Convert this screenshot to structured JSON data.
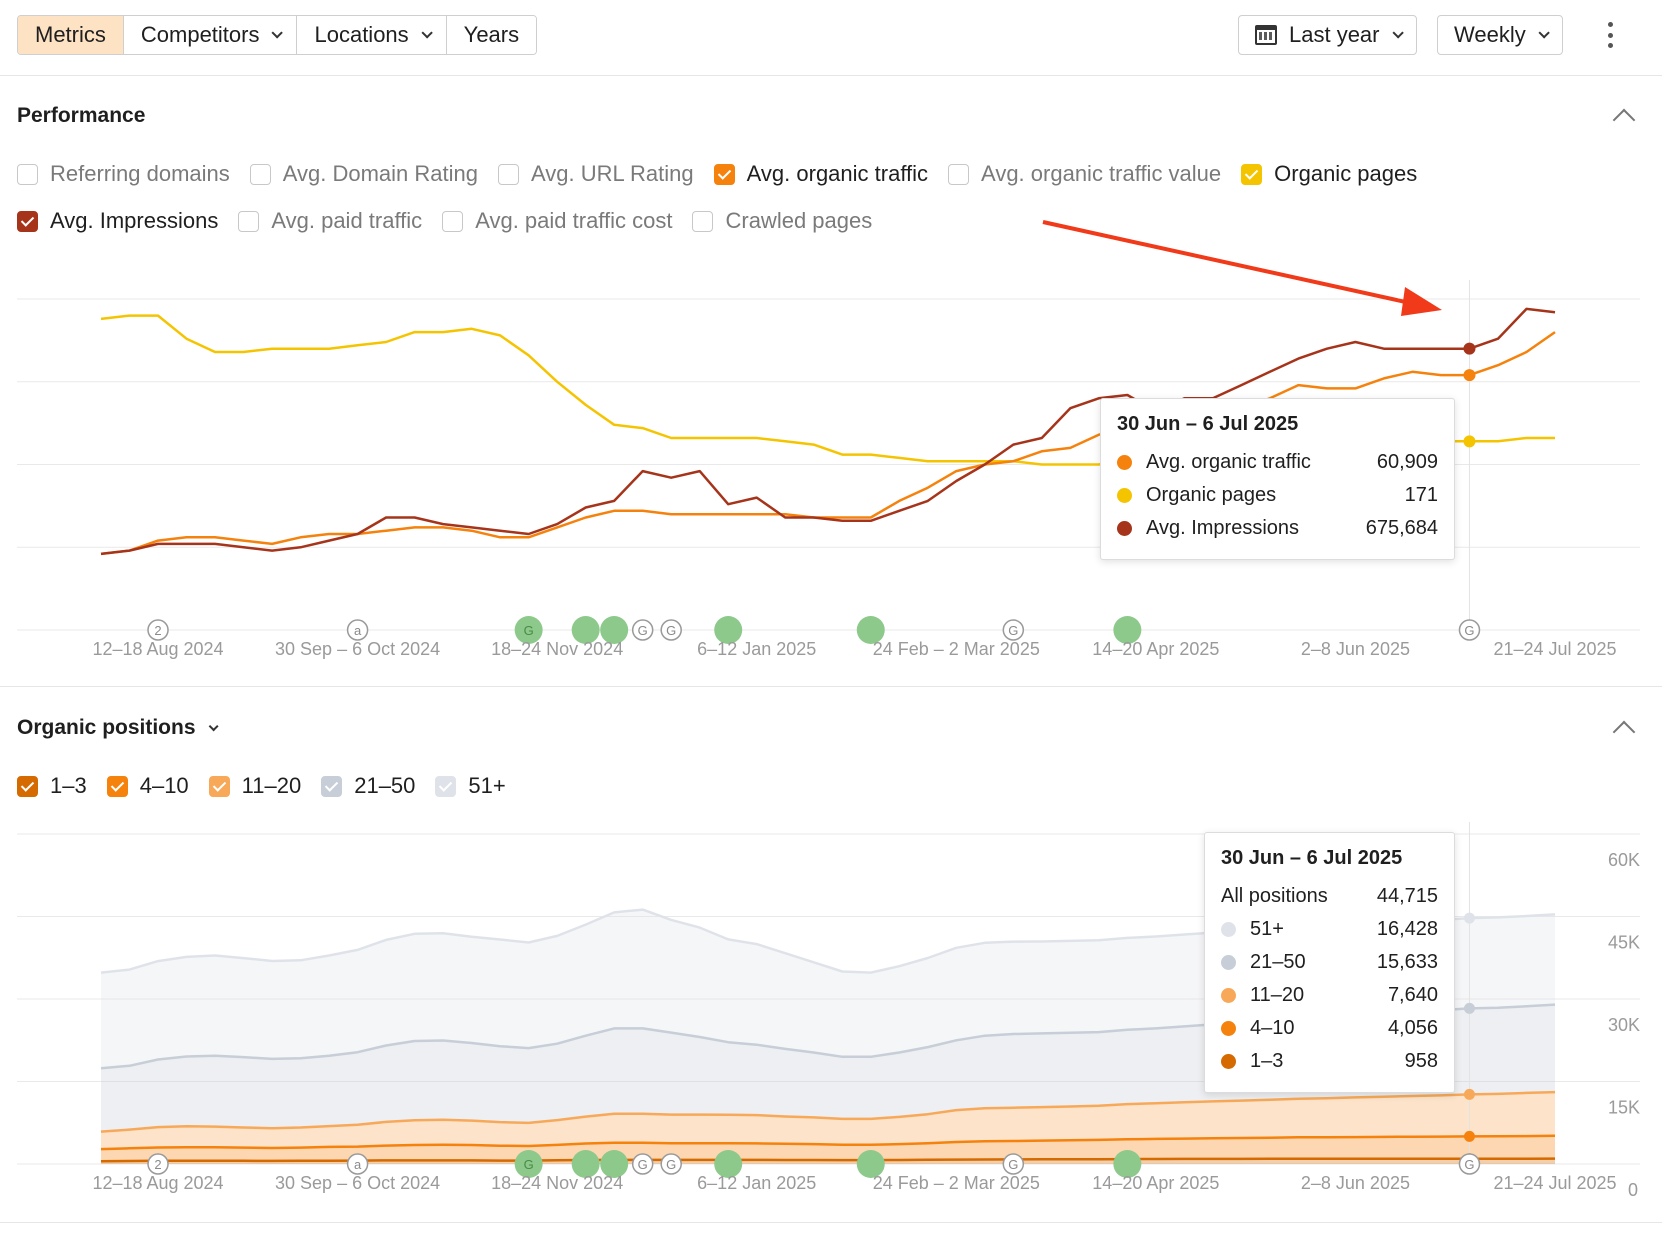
{
  "toolbar": {
    "tabs": [
      {
        "label": "Metrics",
        "active": true,
        "dropdown": false
      },
      {
        "label": "Competitors",
        "active": false,
        "dropdown": true
      },
      {
        "label": "Locations",
        "active": false,
        "dropdown": true
      },
      {
        "label": "Years",
        "active": false,
        "dropdown": false
      }
    ],
    "period_label": "Last year",
    "interval_label": "Weekly"
  },
  "colors": {
    "organic_traffic": "#f5820d",
    "organic_pages": "#f5c400",
    "impressions": "#a6341b",
    "pos_1_3": "#d56a00",
    "pos_4_10": "#f5820d",
    "pos_11_20": "#f7a959",
    "pos_21_50": "#c7ced7",
    "pos_51_plus": "#dfe3e9",
    "annotation_green": "#8cc98a",
    "arrow": "#f03a1a"
  },
  "performance": {
    "title": "Performance",
    "checkboxes_row1": [
      {
        "label": "Referring domains",
        "checked": false,
        "color": ""
      },
      {
        "label": "Avg. Domain Rating",
        "checked": false,
        "color": ""
      },
      {
        "label": "Avg. URL Rating",
        "checked": false,
        "color": ""
      },
      {
        "label": "Avg. organic traffic",
        "checked": true,
        "color": "#f5820d"
      },
      {
        "label": "Avg. organic traffic value",
        "checked": false,
        "color": ""
      },
      {
        "label": "Organic pages",
        "checked": true,
        "color": "#f5c400"
      }
    ],
    "checkboxes_row2": [
      {
        "label": "Avg. Impressions",
        "checked": true,
        "color": "#a6341b"
      },
      {
        "label": "Avg. paid traffic",
        "checked": false,
        "color": ""
      },
      {
        "label": "Avg. paid traffic cost",
        "checked": false,
        "color": ""
      },
      {
        "label": "Crawled pages",
        "checked": false,
        "color": ""
      }
    ],
    "tooltip": {
      "title": "30 Jun – 6 Jul 2025",
      "rows": [
        {
          "name": "Avg. organic traffic",
          "value": "60,909",
          "color": "#f5820d"
        },
        {
          "name": "Organic pages",
          "value": "171",
          "color": "#f5c400"
        },
        {
          "name": "Avg. Impressions",
          "value": "675,684",
          "color": "#a6341b"
        }
      ]
    }
  },
  "positions": {
    "title": "Organic positions",
    "checkboxes": [
      {
        "label": "1–3",
        "checked": true,
        "color": "#d56a00"
      },
      {
        "label": "4–10",
        "checked": true,
        "color": "#f5820d"
      },
      {
        "label": "11–20",
        "checked": true,
        "color": "#f7a959"
      },
      {
        "label": "21–50",
        "checked": true,
        "color": "#c7ced7"
      },
      {
        "label": "51+",
        "checked": true,
        "color": "#dfe3e9"
      }
    ],
    "tooltip": {
      "title": "30 Jun – 6 Jul 2025",
      "total_label": "All positions",
      "total_value": "44,715",
      "rows": [
        {
          "name": "51+",
          "value": "16,428",
          "color": "#dfe3e9"
        },
        {
          "name": "21–50",
          "value": "15,633",
          "color": "#c7ced7"
        },
        {
          "name": "11–20",
          "value": "7,640",
          "color": "#f7a959"
        },
        {
          "name": "4–10",
          "value": "4,056",
          "color": "#f5820d"
        },
        {
          "name": "1–3",
          "value": "958",
          "color": "#d56a00"
        }
      ]
    }
  },
  "chart_data": [
    {
      "type": "line",
      "x_tick_labels": [
        "12–18 Aug 2024",
        "30 Sep – 6 Oct 2024",
        "18–24 Nov 2024",
        "6–12 Jan 2025",
        "24 Feb – 2 Mar 2025",
        "14–20 Apr 2025",
        "2–8 Jun 2025",
        "21–24 Jul 2025"
      ],
      "x_tick_index": [
        2,
        9,
        16,
        23,
        30,
        37,
        44,
        51
      ],
      "x_count": 52,
      "highlight_index": 48,
      "ylim": [
        0,
        1
      ],
      "grid": true,
      "annotations": [
        {
          "index": 2,
          "label": "2",
          "kind": "outline"
        },
        {
          "index": 9,
          "label": "a",
          "kind": "outline"
        },
        {
          "index": 15,
          "label": "G",
          "kind": "green"
        },
        {
          "index": 17,
          "label": "",
          "kind": "green"
        },
        {
          "index": 18,
          "label": "",
          "kind": "green"
        },
        {
          "index": 19,
          "label": "G",
          "kind": "outline"
        },
        {
          "index": 20,
          "label": "G",
          "kind": "outline"
        },
        {
          "index": 22,
          "label": "",
          "kind": "green"
        },
        {
          "index": 27,
          "label": "",
          "kind": "green"
        },
        {
          "index": 32,
          "label": "G",
          "kind": "outline"
        },
        {
          "index": 36,
          "label": "",
          "kind": "green"
        },
        {
          "index": 48,
          "label": "G",
          "kind": "outline"
        }
      ],
      "series": [
        {
          "name": "Organic pages",
          "color": "#f5c400",
          "values": [
            0.94,
            0.95,
            0.95,
            0.88,
            0.84,
            0.84,
            0.85,
            0.85,
            0.85,
            0.86,
            0.87,
            0.9,
            0.9,
            0.91,
            0.89,
            0.83,
            0.75,
            0.68,
            0.62,
            0.61,
            0.58,
            0.58,
            0.58,
            0.58,
            0.57,
            0.56,
            0.53,
            0.53,
            0.52,
            0.51,
            0.51,
            0.51,
            0.51,
            0.5,
            0.5,
            0.5,
            0.52,
            0.53,
            0.54,
            0.55,
            0.55,
            0.55,
            0.56,
            0.56,
            0.56,
            0.57,
            0.57,
            0.57,
            0.57,
            0.57,
            0.58,
            0.58
          ]
        },
        {
          "name": "Avg. organic traffic",
          "color": "#f5820d",
          "values": [
            0.23,
            0.24,
            0.27,
            0.28,
            0.28,
            0.27,
            0.26,
            0.28,
            0.29,
            0.29,
            0.3,
            0.31,
            0.31,
            0.3,
            0.28,
            0.28,
            0.31,
            0.34,
            0.36,
            0.36,
            0.35,
            0.35,
            0.35,
            0.35,
            0.35,
            0.34,
            0.34,
            0.34,
            0.39,
            0.43,
            0.48,
            0.5,
            0.51,
            0.54,
            0.55,
            0.59,
            0.61,
            0.62,
            0.62,
            0.64,
            0.67,
            0.7,
            0.74,
            0.73,
            0.73,
            0.76,
            0.78,
            0.77,
            0.77,
            0.8,
            0.84,
            0.9
          ]
        },
        {
          "name": "Avg. Impressions",
          "color": "#a6341b",
          "values": [
            0.23,
            0.24,
            0.26,
            0.26,
            0.26,
            0.25,
            0.24,
            0.25,
            0.27,
            0.29,
            0.34,
            0.34,
            0.32,
            0.31,
            0.3,
            0.29,
            0.32,
            0.37,
            0.39,
            0.48,
            0.46,
            0.48,
            0.38,
            0.4,
            0.34,
            0.34,
            0.33,
            0.33,
            0.36,
            0.39,
            0.45,
            0.5,
            0.56,
            0.58,
            0.67,
            0.7,
            0.71,
            0.66,
            0.7,
            0.7,
            0.74,
            0.78,
            0.82,
            0.85,
            0.87,
            0.85,
            0.85,
            0.85,
            0.85,
            0.88,
            0.97,
            0.96
          ]
        }
      ]
    },
    {
      "type": "area",
      "x_tick_labels": [
        "12–18 Aug 2024",
        "30 Sep – 6 Oct 2024",
        "18–24 Nov 2024",
        "6–12 Jan 2025",
        "24 Feb – 2 Mar 2025",
        "14–20 Apr 2025",
        "2–8 Jun 2025",
        "21–24 Jul 2025"
      ],
      "x_tick_index": [
        2,
        9,
        16,
        23,
        30,
        37,
        44,
        51
      ],
      "x_count": 52,
      "highlight_index": 48,
      "ylim": [
        0,
        60000
      ],
      "y_ticks": [
        {
          "value": 0,
          "label": "0"
        },
        {
          "value": 15000,
          "label": "15K"
        },
        {
          "value": 30000,
          "label": "30K"
        },
        {
          "value": 45000,
          "label": "45K"
        },
        {
          "value": 60000,
          "label": "60K"
        }
      ],
      "stacked": true,
      "grid": true,
      "annotations": [
        {
          "index": 2,
          "label": "2",
          "kind": "outline"
        },
        {
          "index": 9,
          "label": "a",
          "kind": "outline"
        },
        {
          "index": 15,
          "label": "G",
          "kind": "green"
        },
        {
          "index": 17,
          "label": "",
          "kind": "green"
        },
        {
          "index": 18,
          "label": "",
          "kind": "green"
        },
        {
          "index": 19,
          "label": "G",
          "kind": "outline"
        },
        {
          "index": 20,
          "label": "G",
          "kind": "outline"
        },
        {
          "index": 22,
          "label": "",
          "kind": "green"
        },
        {
          "index": 27,
          "label": "",
          "kind": "green"
        },
        {
          "index": 32,
          "label": "G",
          "kind": "outline"
        },
        {
          "index": 36,
          "label": "",
          "kind": "green"
        },
        {
          "index": 48,
          "label": "G",
          "kind": "outline"
        }
      ],
      "series": [
        {
          "name": "1–3",
          "color": "#d56a00",
          "values": [
            500,
            550,
            600,
            600,
            600,
            580,
            560,
            580,
            600,
            620,
            650,
            660,
            660,
            650,
            620,
            620,
            680,
            720,
            750,
            750,
            740,
            740,
            740,
            740,
            730,
            720,
            700,
            700,
            720,
            760,
            800,
            820,
            830,
            850,
            860,
            880,
            900,
            910,
            920,
            930,
            930,
            940,
            950,
            950,
            950,
            950,
            955,
            955,
            958,
            960,
            970,
            980
          ]
        },
        {
          "name": "4–10",
          "color": "#f5820d",
          "values": [
            2200,
            2300,
            2400,
            2450,
            2450,
            2400,
            2350,
            2400,
            2500,
            2550,
            2700,
            2800,
            2850,
            2800,
            2700,
            2650,
            2800,
            3000,
            3100,
            3100,
            3050,
            3050,
            3050,
            3000,
            2950,
            2900,
            2800,
            2800,
            2900,
            3000,
            3200,
            3300,
            3350,
            3400,
            3450,
            3500,
            3600,
            3650,
            3700,
            3750,
            3800,
            3850,
            3900,
            3920,
            3950,
            3970,
            4000,
            4020,
            4056,
            4070,
            4100,
            4150
          ]
        },
        {
          "name": "11–20",
          "color": "#f7a959",
          "values": [
            3200,
            3400,
            3700,
            3800,
            3750,
            3650,
            3600,
            3650,
            3800,
            3950,
            4300,
            4500,
            4550,
            4450,
            4300,
            4200,
            4500,
            4900,
            5300,
            5300,
            5200,
            5200,
            5150,
            5150,
            4950,
            4850,
            4700,
            4700,
            4950,
            5300,
            5800,
            6000,
            6050,
            6100,
            6150,
            6200,
            6400,
            6500,
            6600,
            6700,
            6800,
            6900,
            7000,
            7100,
            7200,
            7300,
            7400,
            7500,
            7640,
            7720,
            7850,
            7950
          ]
        },
        {
          "name": "21–50",
          "color": "#c7ced7",
          "values": [
            11500,
            11600,
            12300,
            12700,
            12900,
            12800,
            12600,
            12600,
            12800,
            13200,
            13900,
            14400,
            14400,
            14100,
            13800,
            13600,
            13900,
            14700,
            15500,
            15500,
            14900,
            14100,
            13200,
            12800,
            12300,
            11800,
            11300,
            11300,
            11700,
            12200,
            12700,
            13200,
            13400,
            13400,
            13400,
            13400,
            13500,
            13600,
            13800,
            14000,
            14200,
            14400,
            14600,
            14800,
            15000,
            15200,
            15400,
            15500,
            15633,
            15650,
            15750,
            15900
          ]
        },
        {
          "name": "51+",
          "color": "#dfe3e9",
          "values": [
            17400,
            17500,
            17900,
            18100,
            18200,
            18000,
            17800,
            17800,
            18200,
            18600,
            19200,
            19500,
            19500,
            19300,
            19400,
            19200,
            19600,
            20200,
            21100,
            21600,
            20500,
            19900,
            18700,
            18300,
            17400,
            16400,
            15500,
            15300,
            15700,
            16200,
            16800,
            16900,
            16800,
            16700,
            16700,
            16700,
            16700,
            16700,
            16700,
            16700,
            16600,
            16500,
            16500,
            16500,
            16500,
            16400,
            16400,
            16400,
            16428,
            16430,
            16420,
            16400
          ]
        }
      ]
    }
  ]
}
